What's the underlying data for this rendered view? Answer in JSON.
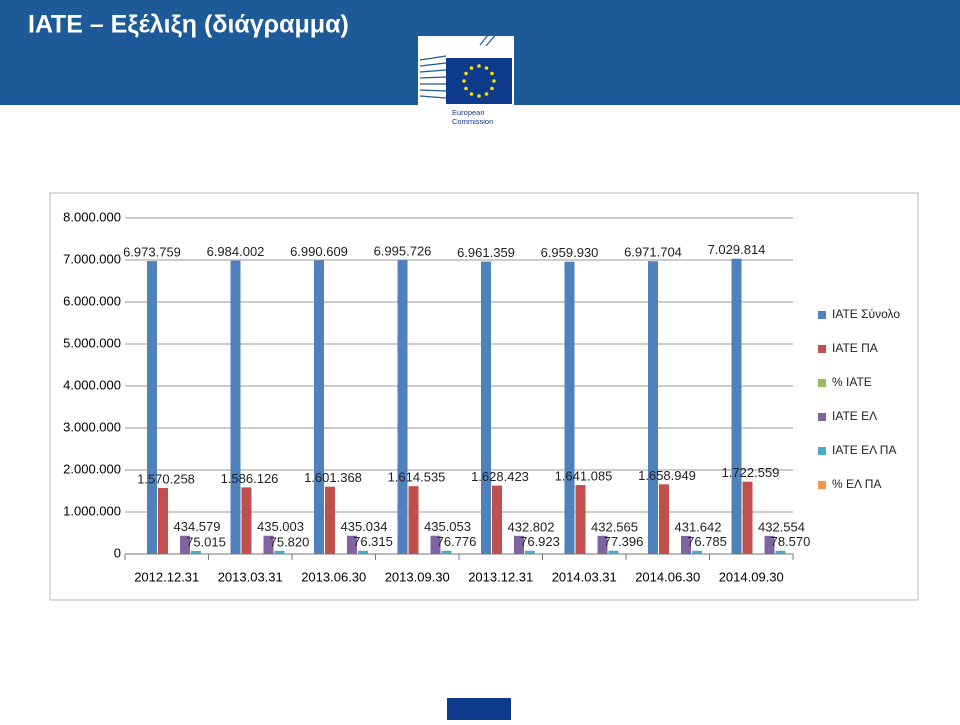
{
  "header": {
    "title": "ΙΑΤΕ – Εξέλιξη (διάγραμμα)",
    "logo_text": [
      "European",
      "Commission"
    ]
  },
  "chart_data": {
    "type": "bar",
    "categories": [
      "2012.12.31",
      "2013.03.31",
      "2013.06.30",
      "2013.09.30",
      "2013.12.31",
      "2014.03.31",
      "2014.06.30",
      "2014.09.30"
    ],
    "series": [
      {
        "name": "ΙΑΤΕ Σύνολο",
        "color": "#4f81bd",
        "values": [
          6973759,
          6984002,
          6990609,
          6995726,
          6961359,
          6959930,
          6971704,
          7029814
        ],
        "value_labels": [
          "6.973.759",
          "6.984.002",
          "6.990.609",
          "6.995.726",
          "6.961.359",
          "6.959.930",
          "6.971.704",
          "7.029.814"
        ]
      },
      {
        "name": "ΙΑΤΕ ΠΑ",
        "color": "#c0504d",
        "values": [
          1570258,
          1586126,
          1601368,
          1614535,
          1628423,
          1641085,
          1658949,
          1722559
        ],
        "value_labels": [
          "1.570.258",
          "1.586.126",
          "1.601.368",
          "1.614.535",
          "1.628.423",
          "1.641.085",
          "1.658.949",
          "1.722.559"
        ]
      },
      {
        "name": "% ΙΑΤΕ",
        "color": "#9bbb59",
        "values": [
          0,
          0,
          0,
          0,
          0,
          0,
          0,
          0
        ]
      },
      {
        "name": "ΙΑΤΕ ΕΛ",
        "color": "#8064a2",
        "values": [
          434579,
          435003,
          435034,
          435053,
          432802,
          432565,
          431642,
          432554
        ],
        "value_labels": [
          "434.579",
          "435.003",
          "435.034",
          "435.053",
          "432.802",
          "432.565",
          "431.642",
          "432.554"
        ]
      },
      {
        "name": "ΙΑΤΕ ΕΛ ΠΑ",
        "color": "#4bacc6",
        "values": [
          75015,
          75820,
          76315,
          76776,
          76923,
          77396,
          76785,
          78570
        ],
        "value_labels": [
          "75.015",
          "75.820",
          "76.315",
          "76.776",
          "76.923",
          "77.396",
          "76.785",
          "78.570"
        ]
      },
      {
        "name": "% ΕΛ ΠΑ",
        "color": "#f79646",
        "values": [
          0,
          0,
          0,
          0,
          0,
          0,
          0,
          0
        ]
      }
    ],
    "ylim": [
      0,
      8000000
    ],
    "yticks": [
      0,
      {
        "value": 1000000,
        "label": "1.000.000"
      },
      {
        "value": 2000000,
        "label": "2.000.000"
      },
      {
        "value": 3000000,
        "label": "3.000.000"
      },
      {
        "value": 4000000,
        "label": "4.000.000"
      },
      {
        "value": 5000000,
        "label": "5.000.000"
      },
      {
        "value": 6000000,
        "label": "6.000.000"
      },
      {
        "value": 7000000,
        "label": "7.000.000"
      },
      {
        "value": 8000000,
        "label": "8.000.000"
      }
    ],
    "grid": true,
    "legend": "right"
  }
}
